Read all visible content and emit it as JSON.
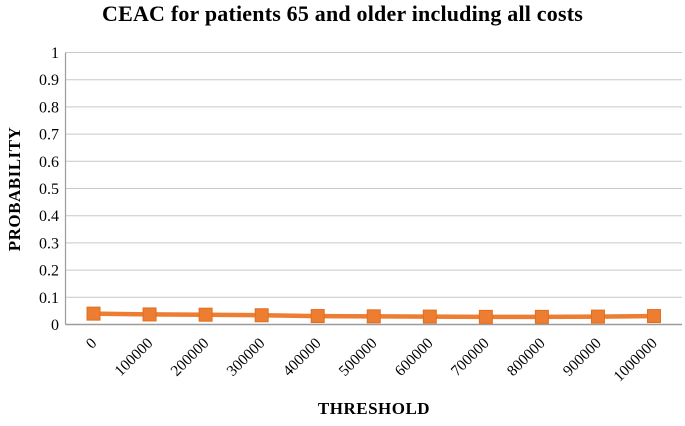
{
  "chart_data": {
    "type": "line",
    "title": "CEAC for patients 65 and older including all costs",
    "xlabel": "THRESHOLD",
    "ylabel": "PROBABILITY",
    "categories": [
      "0",
      "100000",
      "200000",
      "300000",
      "400000",
      "500000",
      "600000",
      "700000",
      "800000",
      "900000",
      "1000000"
    ],
    "series": [
      {
        "name": "CEAC",
        "values": [
          0.04,
          0.037,
          0.036,
          0.034,
          0.031,
          0.03,
          0.029,
          0.028,
          0.028,
          0.029,
          0.031
        ],
        "color": "#ED7D31",
        "marker": "square"
      }
    ],
    "ylim": [
      0,
      1
    ],
    "yticks": [
      0,
      0.1,
      0.2,
      0.3,
      0.4,
      0.5,
      0.6,
      0.7,
      0.8,
      0.9,
      1
    ],
    "ytick_labels": [
      "0",
      "0.1",
      "0.2",
      "0.3",
      "0.4",
      "0.5",
      "0.6",
      "0.7",
      "0.8",
      "0.9",
      "1"
    ],
    "grid": true,
    "legend_position": "none"
  },
  "colors": {
    "series_orange": "#ED7D31",
    "marker_border": "#DE6E20",
    "gridline": "#C9C9C9",
    "axis_line": "#9B9B9B",
    "text": "#000000",
    "background": "#FFFFFF"
  }
}
